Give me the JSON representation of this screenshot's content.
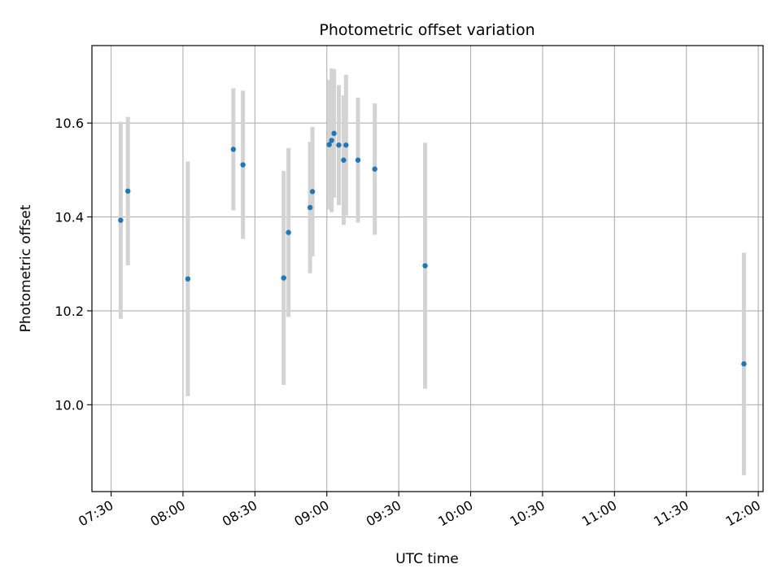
{
  "chart_data": {
    "type": "scatter",
    "title": "Photometric offset variation",
    "xlabel": "UTC time",
    "ylabel": "Photometric offset",
    "x_axis_kind": "time",
    "xlim": [
      "07:22",
      "12:02"
    ],
    "ylim": [
      9.815,
      10.765
    ],
    "grid": true,
    "x_ticks": [
      "07:30",
      "08:00",
      "08:30",
      "09:00",
      "09:30",
      "10:00",
      "10:30",
      "11:00",
      "11:30",
      "12:00"
    ],
    "y_ticks": [
      10.0,
      10.2,
      10.4,
      10.6
    ],
    "y_tick_labels": [
      "10.0",
      "10.2",
      "10.4",
      "10.6"
    ],
    "point_color": "#1f77b4",
    "errorbar_color": "#d3d3d3",
    "points": [
      {
        "x": "07:34",
        "y": 10.393,
        "err": 0.21
      },
      {
        "x": "07:37",
        "y": 10.455,
        "err": 0.158
      },
      {
        "x": "08:02",
        "y": 10.268,
        "err": 0.25
      },
      {
        "x": "08:21",
        "y": 10.544,
        "err": 0.13
      },
      {
        "x": "08:25",
        "y": 10.511,
        "err": 0.158
      },
      {
        "x": "08:42",
        "y": 10.27,
        "err": 0.228
      },
      {
        "x": "08:44",
        "y": 10.367,
        "err": 0.18
      },
      {
        "x": "08:53",
        "y": 10.42,
        "err": 0.14
      },
      {
        "x": "08:54",
        "y": 10.454,
        "err": 0.138
      },
      {
        "x": "09:01",
        "y": 10.554,
        "err": 0.138
      },
      {
        "x": "09:02",
        "y": 10.563,
        "err": 0.153
      },
      {
        "x": "09:03",
        "y": 10.578,
        "err": 0.137
      },
      {
        "x": "09:05",
        "y": 10.553,
        "err": 0.128
      },
      {
        "x": "09:07",
        "y": 10.521,
        "err": 0.138
      },
      {
        "x": "09:08",
        "y": 10.553,
        "err": 0.15
      },
      {
        "x": "09:13",
        "y": 10.521,
        "err": 0.133
      },
      {
        "x": "09:20",
        "y": 10.502,
        "err": 0.14
      },
      {
        "x": "09:41",
        "y": 10.296,
        "err": 0.262
      },
      {
        "x": "11:54",
        "y": 10.087,
        "err": 0.237
      }
    ]
  }
}
